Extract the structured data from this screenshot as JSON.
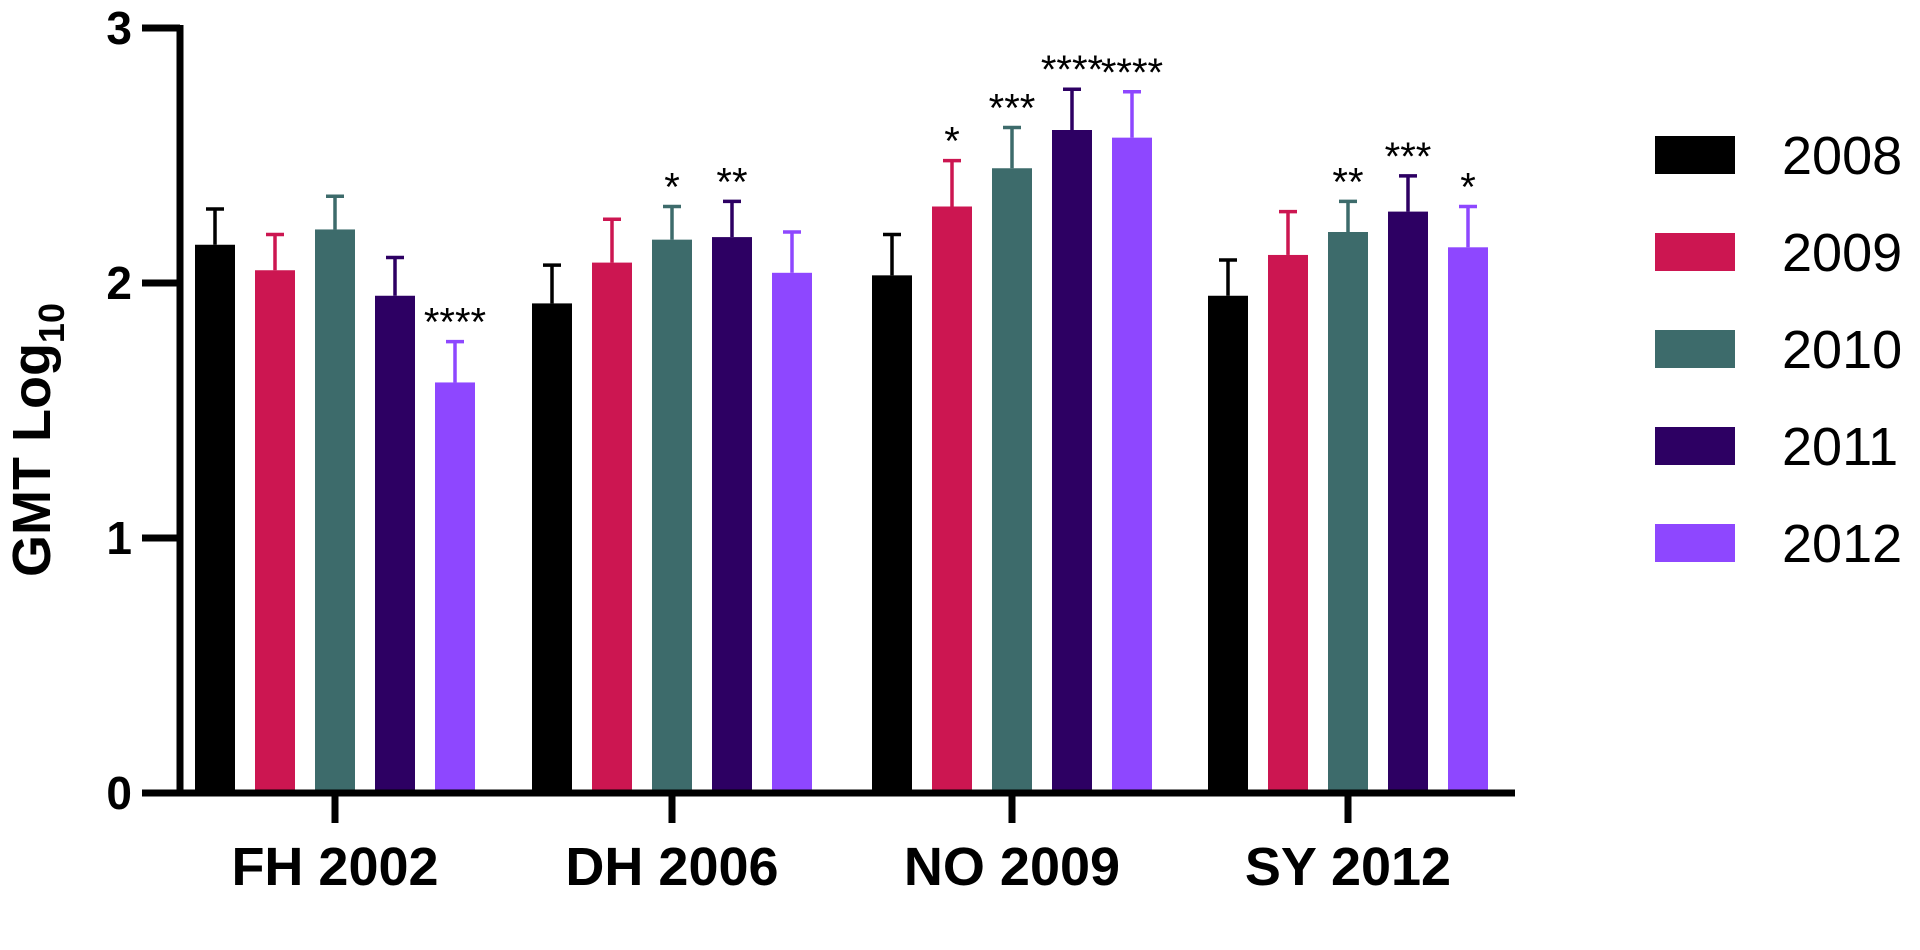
{
  "chart_data": {
    "type": "bar",
    "title": "",
    "xlabel": "",
    "ylabel": "GMT Log",
    "ylabel_subscript": "10",
    "ylim": [
      0,
      3
    ],
    "yticks": [
      0,
      1,
      2,
      3
    ],
    "categories": [
      "FH 2002",
      "DH 2006",
      "NO 2009",
      "SY 2012"
    ],
    "legend_position": "right",
    "series": [
      {
        "name": "2008",
        "color": "#000000",
        "values": [
          2.15,
          1.92,
          2.03,
          1.95
        ],
        "errors": [
          0.14,
          0.15,
          0.16,
          0.14
        ],
        "significance": [
          "",
          "",
          "",
          ""
        ]
      },
      {
        "name": "2009",
        "color": "#cc1651",
        "values": [
          2.05,
          2.08,
          2.3,
          2.11
        ],
        "errors": [
          0.14,
          0.17,
          0.18,
          0.17
        ],
        "significance": [
          "",
          "",
          "*",
          ""
        ]
      },
      {
        "name": "2010",
        "color": "#3d6b6b",
        "values": [
          2.21,
          2.17,
          2.45,
          2.2
        ],
        "errors": [
          0.13,
          0.13,
          0.16,
          0.12
        ],
        "significance": [
          "",
          "*",
          "***",
          "**"
        ]
      },
      {
        "name": "2011",
        "color": "#2d0063",
        "values": [
          1.95,
          2.18,
          2.6,
          2.28
        ],
        "errors": [
          0.15,
          0.14,
          0.16,
          0.14
        ],
        "significance": [
          "",
          "**",
          "****",
          "***"
        ]
      },
      {
        "name": "2012",
        "color": "#8e47ff",
        "values": [
          1.61,
          2.04,
          2.57,
          2.14
        ],
        "errors": [
          0.16,
          0.16,
          0.18,
          0.16
        ],
        "significance": [
          "****",
          "",
          "****",
          "*"
        ]
      }
    ]
  }
}
